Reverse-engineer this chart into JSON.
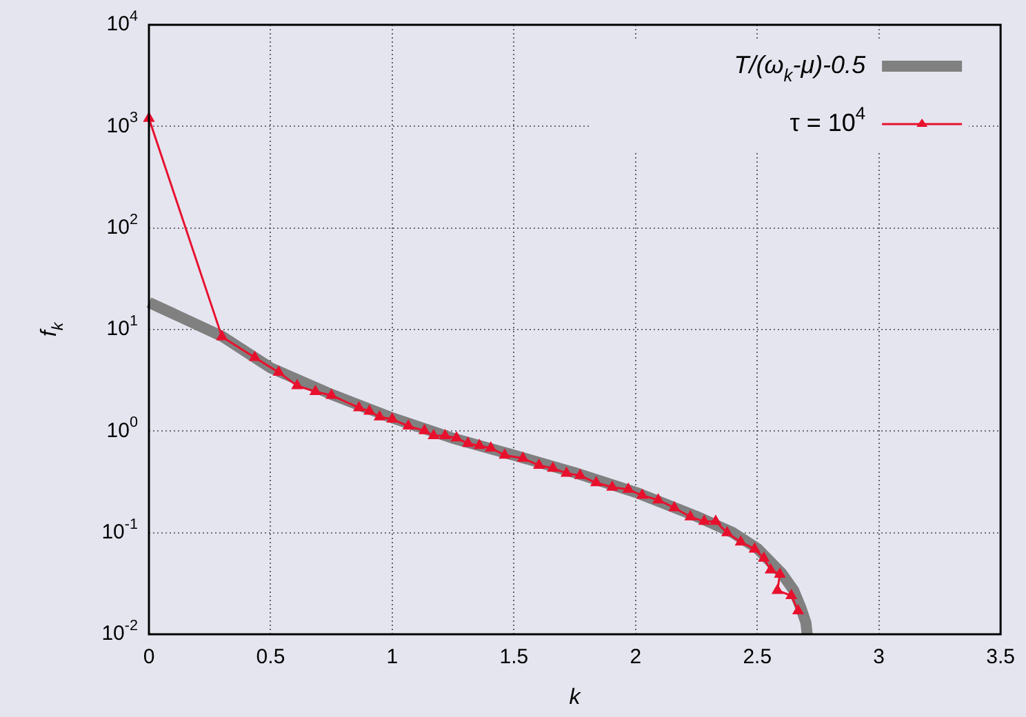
{
  "chart_data": {
    "type": "line",
    "xlabel": "k",
    "ylabel": "f$_{k}$",
    "log": "y",
    "grid": true,
    "legend": "top right",
    "line_style": "solid",
    "xlim": [
      0,
      3.5
    ],
    "xticks": [
      0,
      0.5,
      1,
      1.5,
      2,
      2.5,
      3,
      3.5
    ],
    "ylim": [
      0.01,
      10000
    ],
    "yticks": [
      {
        "value": 0.01,
        "label": "10$^{-2}$"
      },
      {
        "value": 0.1,
        "label": "10$^{-1}$"
      },
      {
        "value": 1,
        "label": "10$^{0}$"
      },
      {
        "value": 10,
        "label": "10$^{1}$"
      },
      {
        "value": 100,
        "label": "10$^{2}$"
      },
      {
        "value": 1000,
        "label": "10$^{3}$"
      },
      {
        "value": 10000,
        "label": "10$^{4}$"
      }
    ],
    "series": [
      {
        "name": "T/(ω$_{k}$-μ)-0.5",
        "color": "#808080",
        "marker": "none",
        "x": [
          0,
          0.3,
          0.5,
          0.75,
          1,
          1.25,
          1.5,
          1.75,
          2,
          2.25,
          2.4,
          2.5,
          2.6,
          2.65,
          2.68,
          2.7,
          2.705
        ],
        "values": [
          18.5,
          8.6,
          4.2,
          2.3,
          1.35,
          0.85,
          0.58,
          0.39,
          0.25,
          0.145,
          0.1,
          0.07,
          0.04,
          0.027,
          0.018,
          0.013,
          0.01
        ]
      },
      {
        "name": "τ = 10$^{4}$",
        "color": "#e8112d",
        "marker": "triangle",
        "x": [
          0,
          0.3,
          0.435,
          0.533,
          0.609,
          0.684,
          0.75,
          0.863,
          0.906,
          0.948,
          1.0,
          1.066,
          1.132,
          1.17,
          1.217,
          1.264,
          1.311,
          1.358,
          1.405,
          1.462,
          1.537,
          1.603,
          1.66,
          1.716,
          1.772,
          1.838,
          1.904,
          1.97,
          2.027,
          2.093,
          2.159,
          2.225,
          2.282,
          2.329,
          2.376,
          2.432,
          2.489,
          2.527,
          2.555,
          2.593,
          2.583,
          2.64,
          2.668
        ],
        "values": [
          1200,
          8.5,
          5.3,
          3.8,
          2.8,
          2.45,
          2.25,
          1.7,
          1.57,
          1.38,
          1.31,
          1.12,
          1.01,
          0.9,
          0.9,
          0.855,
          0.755,
          0.72,
          0.68,
          0.58,
          0.54,
          0.46,
          0.43,
          0.385,
          0.365,
          0.31,
          0.28,
          0.267,
          0.233,
          0.21,
          0.176,
          0.143,
          0.129,
          0.129,
          0.1,
          0.081,
          0.069,
          0.056,
          0.043,
          0.039,
          0.027,
          0.024,
          0.017
        ]
      }
    ]
  }
}
